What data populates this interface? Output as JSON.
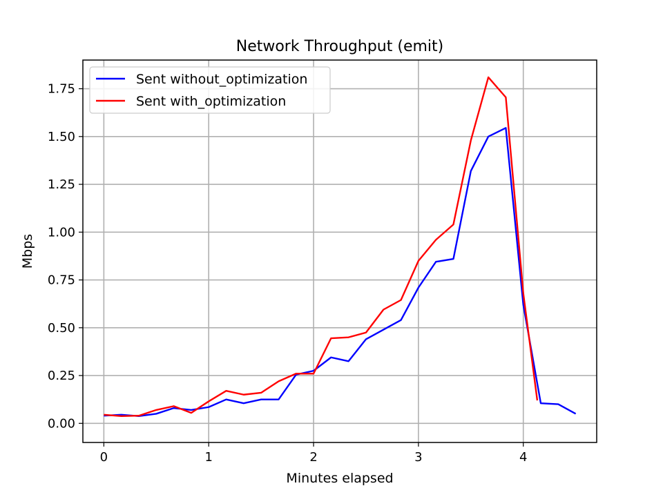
{
  "chart_data": {
    "type": "line",
    "title": "Network Throughput (emit)",
    "xlabel": "Minutes elapsed",
    "ylabel": "Mbps",
    "xlim": [
      -0.2,
      4.7
    ],
    "ylim": [
      -0.1,
      1.9
    ],
    "xticks": [
      0,
      1,
      2,
      3,
      4
    ],
    "xtick_labels": [
      "0",
      "1",
      "2",
      "3",
      "4"
    ],
    "yticks": [
      0.0,
      0.25,
      0.5,
      0.75,
      1.0,
      1.25,
      1.5,
      1.75
    ],
    "ytick_labels": [
      "0.00",
      "0.25",
      "0.50",
      "0.75",
      "1.00",
      "1.25",
      "1.50",
      "1.75"
    ],
    "grid": true,
    "legend_position": "top-left",
    "series": [
      {
        "name": "Sent without_optimization",
        "color": "#0000ff",
        "x": [
          0,
          0.1667,
          0.3333,
          0.5,
          0.6667,
          0.8333,
          1.0,
          1.1667,
          1.3333,
          1.5,
          1.6667,
          1.8333,
          2.0,
          2.1667,
          2.3333,
          2.5,
          2.6667,
          2.8333,
          3.0,
          3.1667,
          3.3333,
          3.5,
          3.6667,
          3.8333,
          4.0,
          4.1667,
          4.3333,
          4.5
        ],
        "y": [
          0.04,
          0.045,
          0.038,
          0.05,
          0.08,
          0.07,
          0.085,
          0.125,
          0.105,
          0.125,
          0.125,
          0.255,
          0.275,
          0.345,
          0.325,
          0.44,
          0.49,
          0.54,
          0.71,
          0.845,
          0.86,
          1.32,
          1.5,
          1.545,
          0.62,
          0.105,
          0.1,
          0.05
        ]
      },
      {
        "name": "Sent with_optimization",
        "color": "#ff0000",
        "x": [
          0,
          0.1667,
          0.3333,
          0.5,
          0.6667,
          0.8333,
          1.0,
          1.1667,
          1.3333,
          1.5,
          1.6667,
          1.8333,
          2.0,
          2.1667,
          2.3333,
          2.5,
          2.6667,
          2.8333,
          3.0,
          3.1667,
          3.3333,
          3.5,
          3.6667,
          3.8333,
          4.0,
          4.1333
        ],
        "y": [
          0.045,
          0.038,
          0.04,
          0.07,
          0.09,
          0.055,
          0.115,
          0.17,
          0.15,
          0.16,
          0.22,
          0.26,
          0.26,
          0.445,
          0.45,
          0.475,
          0.595,
          0.645,
          0.85,
          0.96,
          1.04,
          1.48,
          1.81,
          1.705,
          0.68,
          0.12
        ]
      }
    ]
  }
}
